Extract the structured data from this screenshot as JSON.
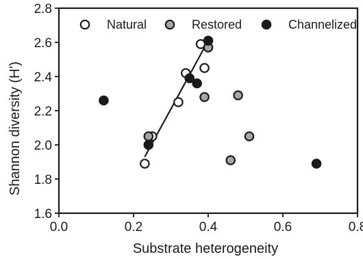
{
  "chart_data": {
    "type": "scatter",
    "title": "",
    "xlabel": "Substrate heterogeneity",
    "ylabel": "Shannon diversity (H')",
    "xlim": [
      0.0,
      0.8
    ],
    "ylim": [
      1.6,
      2.8
    ],
    "xticks": [
      0.0,
      0.2,
      0.4,
      0.6,
      0.8
    ],
    "xtick_labels": [
      "0.0",
      "0.2",
      "0.4",
      "0.6",
      "0.8"
    ],
    "yticks": [
      1.6,
      1.8,
      2.0,
      2.2,
      2.4,
      2.6,
      2.8
    ],
    "ytick_labels": [
      "1.6",
      "1.8",
      "2.0",
      "2.2",
      "2.4",
      "2.6",
      "2.8"
    ],
    "grid": false,
    "legend": "top",
    "series": [
      {
        "name": "Natural",
        "marker_fill": "#ffffff",
        "marker_stroke": "#1a1a1a",
        "points": [
          {
            "x": 0.23,
            "y": 1.89
          },
          {
            "x": 0.25,
            "y": 2.05
          },
          {
            "x": 0.32,
            "y": 2.25
          },
          {
            "x": 0.34,
            "y": 2.42
          },
          {
            "x": 0.38,
            "y": 2.59
          },
          {
            "x": 0.39,
            "y": 2.45
          }
        ]
      },
      {
        "name": "Restored",
        "marker_fill": "#a6a6a6",
        "marker_stroke": "#1a1a1a",
        "points": [
          {
            "x": 0.24,
            "y": 2.05
          },
          {
            "x": 0.39,
            "y": 2.28
          },
          {
            "x": 0.4,
            "y": 2.57
          },
          {
            "x": 0.46,
            "y": 1.91
          },
          {
            "x": 0.48,
            "y": 2.29
          },
          {
            "x": 0.51,
            "y": 2.05
          }
        ]
      },
      {
        "name": "Channelized",
        "marker_fill": "#1a1a1a",
        "marker_stroke": "#1a1a1a",
        "points": [
          {
            "x": 0.12,
            "y": 2.26
          },
          {
            "x": 0.24,
            "y": 2.0
          },
          {
            "x": 0.35,
            "y": 2.39
          },
          {
            "x": 0.37,
            "y": 2.36
          },
          {
            "x": 0.4,
            "y": 2.61
          },
          {
            "x": 0.69,
            "y": 1.89
          }
        ]
      }
    ],
    "trend_line": {
      "x": [
        0.23,
        0.395
      ],
      "y": [
        1.93,
        2.59
      ]
    }
  }
}
